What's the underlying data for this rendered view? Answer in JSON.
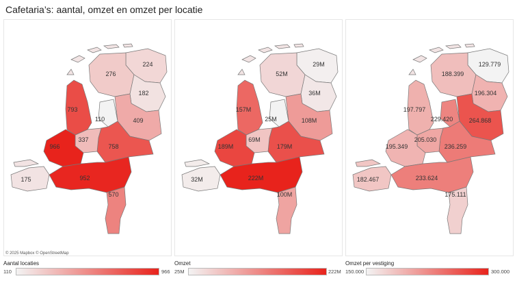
{
  "title": "Cafetaria’s: aantal, omzet en omzet per locatie",
  "attribution": "© 2025 Mapbox © OpenStreetMap",
  "icons": {
    "map": "choropleth-map",
    "legend": "color-gradient-legend"
  },
  "color_scale": {
    "low": "#f3f3f3",
    "high": "#e8231c"
  },
  "maps": [
    {
      "legend_title": "Aantal locaties",
      "legend_min": "110",
      "legend_max": "966",
      "scale_min": 110,
      "scale_max": 966,
      "regions": [
        {
          "name": "Groningen",
          "value": 224,
          "label": "224"
        },
        {
          "name": "Friesland",
          "value": 276,
          "label": "276"
        },
        {
          "name": "Drenthe",
          "value": 182,
          "label": "182"
        },
        {
          "name": "Overijssel",
          "value": 409,
          "label": "409"
        },
        {
          "name": "Flevoland",
          "value": 110,
          "label": "110"
        },
        {
          "name": "Gelderland",
          "value": 758,
          "label": "758"
        },
        {
          "name": "Utrecht",
          "value": 337,
          "label": "337"
        },
        {
          "name": "Noord-Holland",
          "value": 793,
          "label": "793"
        },
        {
          "name": "Zuid-Holland",
          "value": 966,
          "label": "966"
        },
        {
          "name": "Zeeland",
          "value": 175,
          "label": "175"
        },
        {
          "name": "Noord-Brabant",
          "value": 952,
          "label": "952"
        },
        {
          "name": "Limburg",
          "value": 570,
          "label": "570"
        }
      ]
    },
    {
      "legend_title": "Omzet",
      "legend_min": "25M",
      "legend_max": "222M",
      "scale_min": 25,
      "scale_max": 222,
      "regions": [
        {
          "name": "Groningen",
          "value": 29,
          "label": "29M"
        },
        {
          "name": "Friesland",
          "value": 52,
          "label": "52M"
        },
        {
          "name": "Drenthe",
          "value": 36,
          "label": "36M"
        },
        {
          "name": "Overijssel",
          "value": 108,
          "label": "108M"
        },
        {
          "name": "Flevoland",
          "value": 25,
          "label": "25M"
        },
        {
          "name": "Gelderland",
          "value": 179,
          "label": "179M"
        },
        {
          "name": "Utrecht",
          "value": 69,
          "label": "69M"
        },
        {
          "name": "Noord-Holland",
          "value": 157,
          "label": "157M"
        },
        {
          "name": "Zuid-Holland",
          "value": 189,
          "label": "189M"
        },
        {
          "name": "Zeeland",
          "value": 32,
          "label": "32M"
        },
        {
          "name": "Noord-Brabant",
          "value": 222,
          "label": "222M"
        },
        {
          "name": "Limburg",
          "value": 100,
          "label": "100M"
        }
      ]
    },
    {
      "legend_title": "Omzet per vestiging",
      "legend_min": "150.000",
      "legend_max": "300.000",
      "scale_min": 150000,
      "scale_max": 300000,
      "regions": [
        {
          "name": "Groningen",
          "value": 129779,
          "label": "129.779"
        },
        {
          "name": "Friesland",
          "value": 188399,
          "label": "188.399"
        },
        {
          "name": "Drenthe",
          "value": 196304,
          "label": "196.304"
        },
        {
          "name": "Overijssel",
          "value": 264868,
          "label": "264.868"
        },
        {
          "name": "Flevoland",
          "value": 229420,
          "label": "229.420"
        },
        {
          "name": "Gelderland",
          "value": 236259,
          "label": "236.259"
        },
        {
          "name": "Utrecht",
          "value": 205030,
          "label": "205.030"
        },
        {
          "name": "Noord-Holland",
          "value": 197797,
          "label": "197.797"
        },
        {
          "name": "Zuid-Holland",
          "value": 195349,
          "label": "195.349"
        },
        {
          "name": "Zeeland",
          "value": 182467,
          "label": "182.467"
        },
        {
          "name": "Noord-Brabant",
          "value": 233624,
          "label": "233.624"
        },
        {
          "name": "Limburg",
          "value": 175111,
          "label": "175.111"
        }
      ]
    }
  ]
}
